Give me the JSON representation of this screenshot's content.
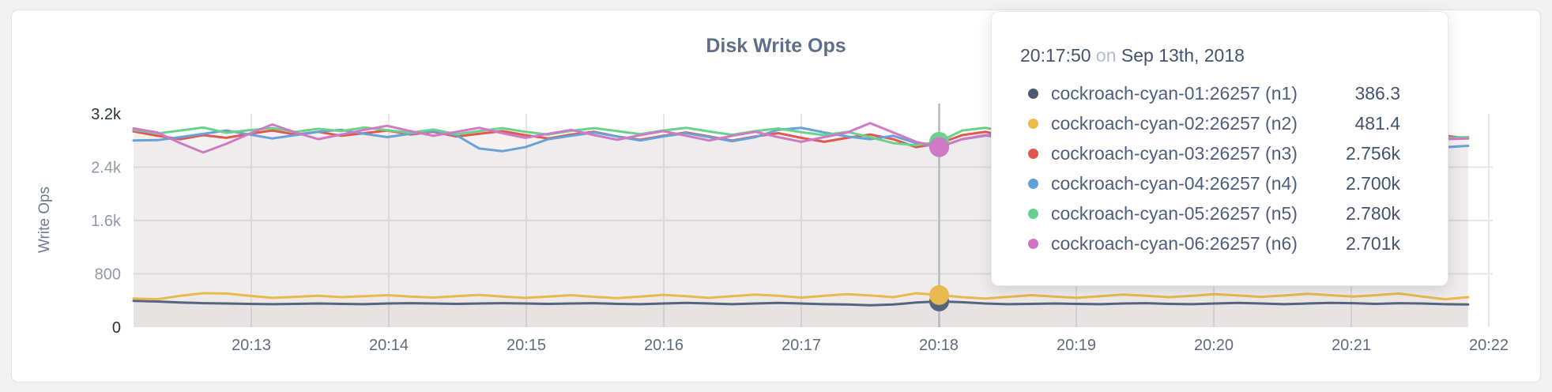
{
  "colors": {
    "page_background": "#f0f1f0",
    "card_background": "#ffffff",
    "card_border": "#e2e4e7",
    "gridline": "#e6e7e9",
    "guideline": "#b7bac0",
    "title_text": "#5f6e89",
    "axis_text": "#5f6b81"
  },
  "chart_data": {
    "type": "line",
    "title": "Disk Write Ops",
    "ylabel": "Write Ops",
    "ylim": [
      0,
      3200
    ],
    "grid": "on",
    "legend_position": "tooltip-overlay",
    "x_start_time": "20:12:10",
    "x_interval_seconds": 10,
    "x_tick_labels": [
      "20:13",
      "20:14",
      "20:15",
      "20:16",
      "20:17",
      "20:18",
      "20:19",
      "20:20",
      "20:21",
      "20:22"
    ],
    "y_ticks": [
      {
        "label": "3.2k",
        "value": 3200,
        "strong": true
      },
      {
        "label": "2.4k",
        "value": 2400,
        "strong": false
      },
      {
        "label": "1.6k",
        "value": 1600,
        "strong": false
      },
      {
        "label": "800",
        "value": 800,
        "strong": false
      },
      {
        "label": "0",
        "value": 0,
        "strong": true
      }
    ],
    "hover": {
      "time": "20:17:50",
      "index": 35
    },
    "series": [
      {
        "name": "cockroach-cyan-01:26257 (n1)",
        "color": "#556480",
        "values": [
          395,
          385,
          370,
          360,
          355,
          350,
          345,
          350,
          355,
          350,
          345,
          355,
          360,
          355,
          350,
          355,
          360,
          355,
          350,
          355,
          360,
          350,
          345,
          355,
          365,
          355,
          345,
          355,
          365,
          355,
          345,
          340,
          330,
          340,
          370,
          386.3,
          375,
          355,
          345,
          350,
          355,
          350,
          345,
          355,
          360,
          350,
          345,
          355,
          365,
          355,
          345,
          355,
          365,
          360,
          350,
          360,
          355,
          345,
          340
        ]
      },
      {
        "name": "cockroach-cyan-02:26257 (n2)",
        "color": "#e7b94e",
        "values": [
          430,
          420,
          470,
          510,
          505,
          470,
          440,
          455,
          470,
          450,
          465,
          480,
          460,
          445,
          465,
          485,
          460,
          440,
          460,
          480,
          455,
          435,
          460,
          485,
          465,
          440,
          465,
          490,
          470,
          445,
          470,
          495,
          475,
          450,
          510,
          481.4,
          450,
          430,
          455,
          480,
          460,
          440,
          465,
          490,
          470,
          450,
          470,
          495,
          475,
          455,
          475,
          500,
          480,
          460,
          480,
          505,
          460,
          420,
          450
        ]
      },
      {
        "name": "cockroach-cyan-03:26257 (n3)",
        "color": "#e0584e",
        "values": [
          2935,
          2870,
          2820,
          2880,
          2840,
          2900,
          2950,
          2890,
          2930,
          2870,
          2910,
          2950,
          2890,
          2930,
          2860,
          2900,
          2940,
          2880,
          2830,
          2890,
          2930,
          2860,
          2810,
          2870,
          2920,
          2860,
          2800,
          2860,
          2910,
          2840,
          2780,
          2840,
          2890,
          2820,
          2700,
          2756,
          2880,
          2930,
          2860,
          2800,
          2870,
          2920,
          2850,
          2790,
          2855,
          2910,
          2840,
          2780,
          2845,
          2900,
          2830,
          2880,
          2820,
          2870,
          2800,
          2950,
          3000,
          2870,
          2830
        ]
      },
      {
        "name": "cockroach-cyan-04:26257 (n4)",
        "color": "#67a2d8",
        "values": [
          2800,
          2805,
          2850,
          2900,
          2950,
          2890,
          2830,
          2880,
          2930,
          2960,
          2900,
          2850,
          2900,
          2940,
          2880,
          2680,
          2640,
          2700,
          2820,
          2870,
          2920,
          2860,
          2800,
          2860,
          2910,
          2850,
          2790,
          2850,
          2960,
          2990,
          2920,
          2860,
          2820,
          2870,
          2760,
          2700,
          2820,
          2870,
          2920,
          2860,
          2810,
          2860,
          2910,
          2850,
          2790,
          2850,
          2900,
          2840,
          2780,
          2840,
          2890,
          2830,
          2770,
          2830,
          2880,
          2820,
          2760,
          2700,
          2720
        ]
      },
      {
        "name": "cockroach-cyan-05:26257 (n5)",
        "color": "#6bd28b",
        "values": [
          2960,
          2905,
          2950,
          2995,
          2915,
          2955,
          2985,
          2930,
          2975,
          2940,
          2995,
          2955,
          2915,
          2965,
          2895,
          2940,
          2985,
          2930,
          2890,
          2945,
          2985,
          2940,
          2895,
          2950,
          2990,
          2935,
          2885,
          2940,
          2980,
          2925,
          2880,
          2930,
          2850,
          2760,
          2730,
          2780,
          2950,
          2990,
          2930,
          2880,
          2935,
          2975,
          2920,
          2870,
          2925,
          2970,
          2910,
          2860,
          2920,
          2965,
          2905,
          2950,
          2900,
          2940,
          2890,
          2930,
          2870,
          2840,
          2850
        ]
      },
      {
        "name": "cockroach-cyan-06:26257 (n6)",
        "color": "#d07ac6",
        "values": [
          2980,
          2920,
          2760,
          2620,
          2750,
          2900,
          3040,
          2920,
          2820,
          2890,
          2960,
          3020,
          2940,
          2870,
          2930,
          2990,
          2910,
          2840,
          2900,
          2960,
          2880,
          2810,
          2880,
          2940,
          2870,
          2800,
          2870,
          2930,
          2850,
          2780,
          2850,
          2920,
          3060,
          2920,
          2780,
          2701,
          2820,
          2880,
          2810,
          2740,
          2820,
          2880,
          2800,
          2730,
          2800,
          2870,
          2790,
          2720,
          2800,
          2860,
          2780,
          2710,
          2790,
          2850,
          2770,
          2700,
          2640,
          2820,
          2830
        ]
      }
    ]
  },
  "tooltip": {
    "time": "20:17:50",
    "on_word": "on",
    "date": "Sep 13th, 2018",
    "rows": [
      {
        "name": "cockroach-cyan-01:26257 (n1)",
        "value": "386.3",
        "color": "#4b5b76"
      },
      {
        "name": "cockroach-cyan-02:26257 (n2)",
        "value": "481.4",
        "color": "#ecbc4b"
      },
      {
        "name": "cockroach-cyan-03:26257 (n3)",
        "value": "2.756k",
        "color": "#e2574b"
      },
      {
        "name": "cockroach-cyan-04:26257 (n4)",
        "value": "2.700k",
        "color": "#60a1dc"
      },
      {
        "name": "cockroach-cyan-05:26257 (n5)",
        "value": "2.780k",
        "color": "#64d389"
      },
      {
        "name": "cockroach-cyan-06:26257 (n6)",
        "value": "2.701k",
        "color": "#d273c6"
      }
    ]
  }
}
